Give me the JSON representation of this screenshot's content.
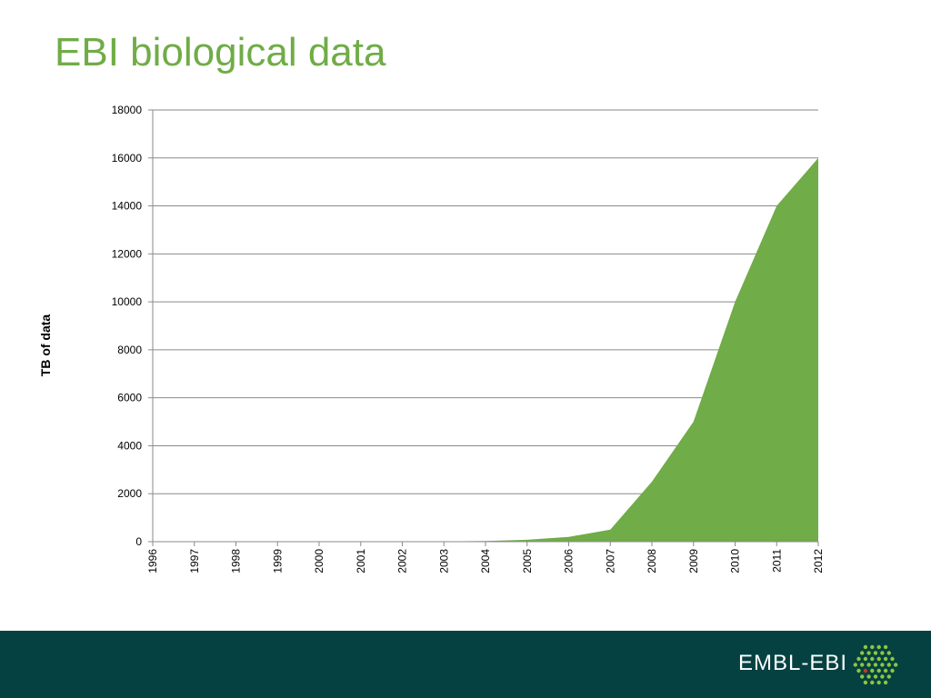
{
  "slide": {
    "title": "EBI biological data"
  },
  "footer": {
    "brand": "EMBL-EBI",
    "logo_icon": "embl-ebi-dot-hexagon-icon"
  },
  "colors": {
    "title": "#70ac47",
    "area": "#70ac47",
    "footer": "#054141",
    "gridline": "#8a8a8a"
  },
  "chart_data": {
    "type": "area",
    "title": "",
    "xlabel": "",
    "ylabel": "TB of data",
    "categories": [
      "1996",
      "1997",
      "1998",
      "1999",
      "2000",
      "2001",
      "2002",
      "2003",
      "2004",
      "2005",
      "2006",
      "2007",
      "2008",
      "2009",
      "2010",
      "2011",
      "2012"
    ],
    "values": [
      0,
      0,
      0,
      0,
      0,
      0,
      0,
      10,
      30,
      80,
      200,
      500,
      2500,
      5000,
      10000,
      14000,
      16000
    ],
    "ylim": [
      0,
      18000
    ],
    "yticks": [
      "0",
      "2000",
      "4000",
      "6000",
      "8000",
      "10000",
      "12000",
      "14000",
      "16000",
      "18000"
    ],
    "grid": true,
    "legend": "none"
  }
}
